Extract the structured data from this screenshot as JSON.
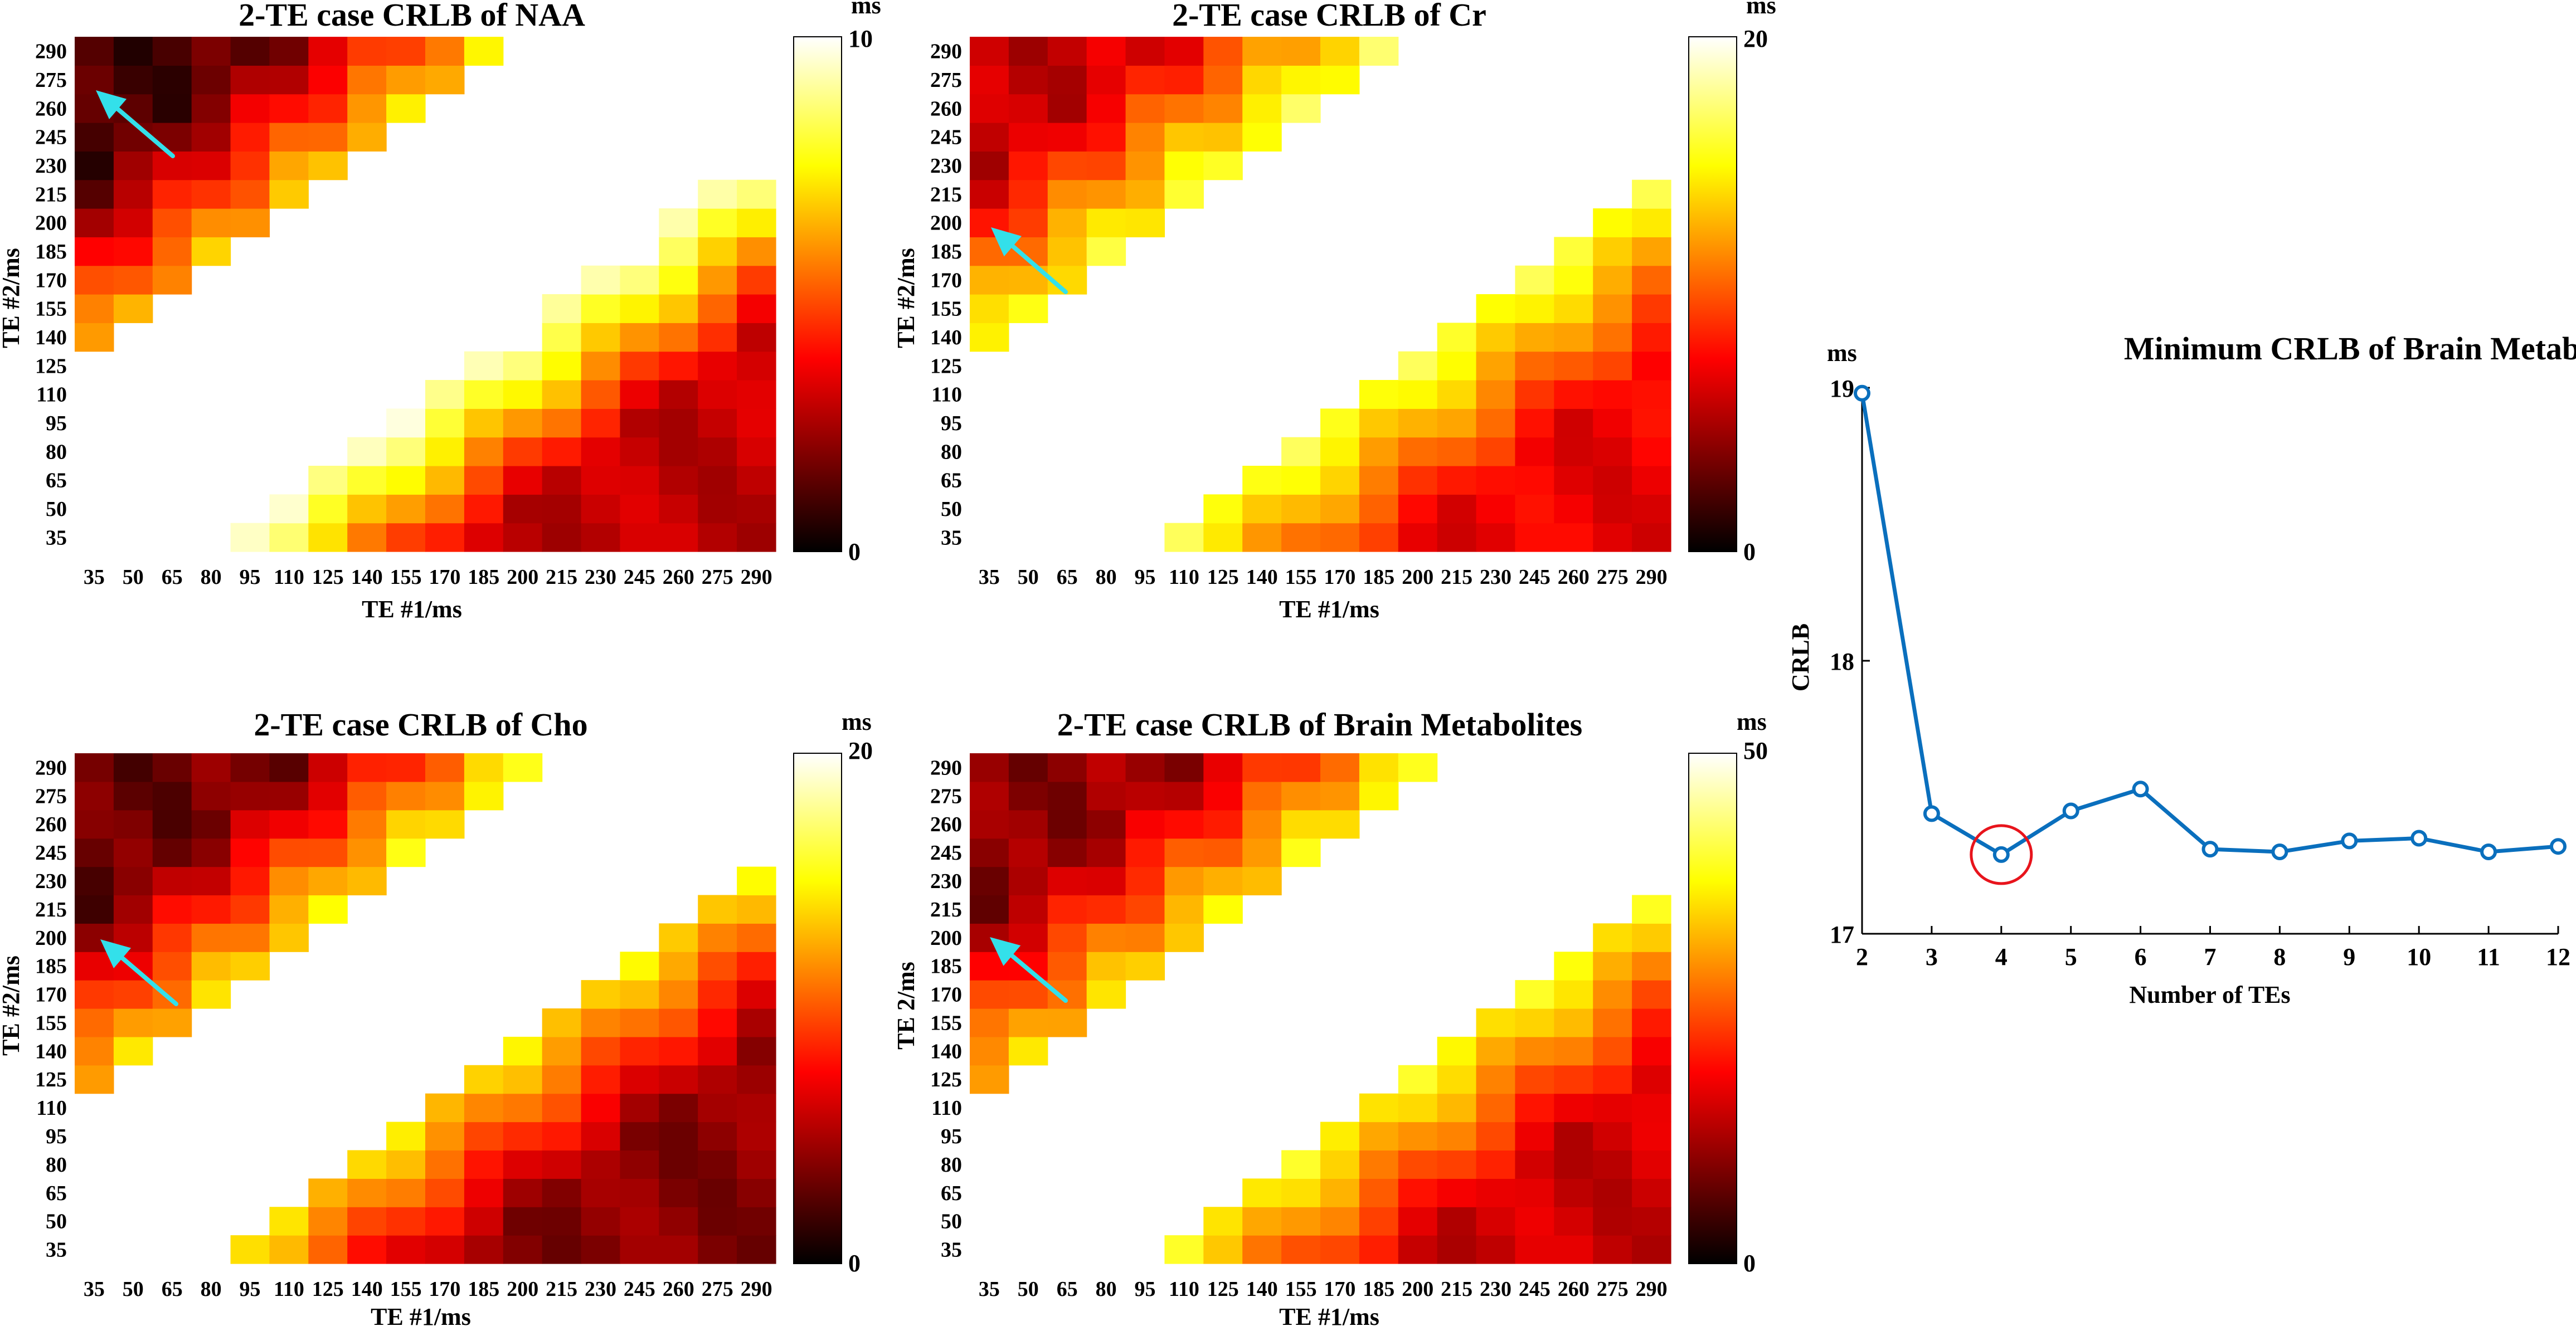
{
  "chart_data": [
    {
      "type": "heatmap",
      "title": "2-TE case CRLB of NAA",
      "xlabel": "TE #1/ms",
      "ylabel": "TE #2/ms",
      "x": [
        35,
        50,
        65,
        80,
        95,
        110,
        125,
        140,
        155,
        170,
        185,
        200,
        215,
        230,
        245,
        260,
        275,
        290
      ],
      "y": [
        35,
        50,
        65,
        80,
        95,
        110,
        125,
        140,
        155,
        170,
        185,
        200,
        215,
        230,
        245,
        260,
        275,
        290
      ],
      "colorbar": {
        "unit": "ms",
        "range": [
          0,
          10
        ],
        "ticks": [
          "0",
          "10"
        ],
        "colormap": "hot"
      },
      "annotation": "arrow pointing to minimum near TE #1 = 35 ms, TE #2 = 275 ms",
      "white_band_upper": 6,
      "white_band_lower": 3,
      "diag_gain": [
        0.5,
        0.8
      ],
      "base": [
        0.1,
        0.28
      ],
      "far_gain": [
        0.3,
        0.35
      ]
    },
    {
      "type": "heatmap",
      "title": "2-TE case CRLB of Cr",
      "xlabel": "TE #1/ms",
      "ylabel": "TE #2/ms",
      "x": [
        35,
        50,
        65,
        80,
        95,
        110,
        125,
        140,
        155,
        170,
        185,
        200,
        215,
        230,
        245,
        260,
        275,
        290
      ],
      "y": [
        35,
        50,
        65,
        80,
        95,
        110,
        125,
        140,
        155,
        170,
        185,
        200,
        215,
        230,
        245,
        260,
        275,
        290
      ],
      "colorbar": {
        "unit": "ms",
        "range": [
          0,
          20
        ],
        "ticks": [
          "0",
          "20"
        ],
        "colormap": "hot"
      },
      "annotation": "arrow pointing to minimum near TE #1 = 35 ms, TE #2 = 200 ms",
      "white_band_upper": 6,
      "white_band_lower": 4,
      "diag_gain": [
        0.45,
        0.55
      ],
      "base": [
        0.28,
        0.35
      ],
      "far_gain": [
        0.2,
        0.1
      ]
    },
    {
      "type": "heatmap",
      "title": "2-TE case CRLB of Cho",
      "xlabel": "TE #1/ms",
      "ylabel": "TE #2/ms",
      "x": [
        35,
        50,
        65,
        80,
        95,
        110,
        125,
        140,
        155,
        170,
        185,
        200,
        215,
        230,
        245,
        260,
        275,
        290
      ],
      "y": [
        35,
        50,
        65,
        80,
        95,
        110,
        125,
        140,
        155,
        170,
        185,
        200,
        215,
        230,
        245,
        260,
        275,
        290
      ],
      "colorbar": {
        "unit": "ms",
        "range": [
          0,
          20
        ],
        "ticks": [
          "0",
          "20"
        ],
        "colormap": "hot"
      },
      "annotation": "arrow pointing to minimum near TE #1 = 35 ms, TE #2 = 200 ms",
      "white_band_upper": 5,
      "white_band_lower": 3,
      "diag_gain": [
        0.5,
        0.6
      ],
      "base": [
        0.15,
        0.2
      ],
      "far_gain": [
        0.2,
        0.25
      ]
    },
    {
      "type": "heatmap",
      "title": "2-TE case CRLB of Brain Metabolites",
      "xlabel": "TE #1/ms",
      "ylabel": "TE 2/ms",
      "x": [
        35,
        50,
        65,
        80,
        95,
        110,
        125,
        140,
        155,
        170,
        185,
        200,
        215,
        230,
        245,
        260,
        275,
        290
      ],
      "y": [
        35,
        50,
        65,
        80,
        95,
        110,
        125,
        140,
        155,
        170,
        185,
        200,
        215,
        230,
        245,
        260,
        275,
        290
      ],
      "colorbar": {
        "unit": "ms",
        "range": [
          0,
          50
        ],
        "ticks": [
          "0",
          "50"
        ],
        "colormap": "hot"
      },
      "annotation": "arrow pointing to minimum near TE #1 = 35 ms, TE #2 = 200 ms",
      "white_band_upper": 5,
      "white_band_lower": 4,
      "diag_gain": [
        0.45,
        0.55
      ],
      "base": [
        0.2,
        0.3
      ],
      "far_gain": [
        0.25,
        0.15
      ]
    },
    {
      "type": "line",
      "title": "Minimum CRLB of Brain Metablites",
      "xlabel": "Number of TEs",
      "ylabel": "CRLB",
      "yunit": "ms",
      "x": [
        2,
        3,
        4,
        5,
        6,
        7,
        8,
        9,
        10,
        11,
        12
      ],
      "y": [
        18.98,
        17.44,
        17.29,
        17.45,
        17.53,
        17.31,
        17.3,
        17.34,
        17.35,
        17.3,
        17.32
      ],
      "xlim": [
        2,
        12
      ],
      "ylim": [
        17,
        19
      ],
      "yticks": [
        "17",
        "18",
        "19"
      ],
      "xticks": [
        "2",
        "3",
        "4",
        "5",
        "6",
        "7",
        "8",
        "9",
        "10",
        "11",
        "12"
      ],
      "line_color": "#0a6fbd",
      "highlight": {
        "x": 4,
        "y": 17.29,
        "color": "#e8141c"
      }
    }
  ],
  "colors": {
    "arrow": "#33e0ea",
    "line": "#0a6fbd",
    "highlight": "#e8141c"
  }
}
